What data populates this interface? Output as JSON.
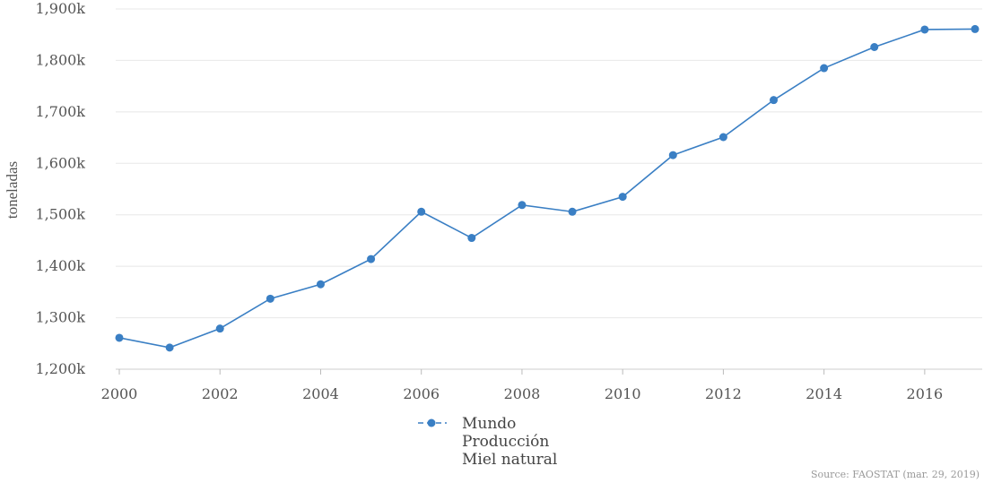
{
  "chart_data": {
    "type": "line",
    "title": "",
    "xlabel": "",
    "ylabel": "toneladas",
    "x": [
      2000,
      2001,
      2002,
      2003,
      2004,
      2005,
      2006,
      2007,
      2008,
      2009,
      2010,
      2011,
      2012,
      2013,
      2014,
      2015,
      2016,
      2017
    ],
    "series": [
      {
        "legend_lines": [
          "Mundo",
          "Producción",
          "Miel natural"
        ],
        "color": "#3a7fc4",
        "values": [
          1261000,
          1242000,
          1279000,
          1337000,
          1365000,
          1414000,
          1506000,
          1455000,
          1519000,
          1506000,
          1535000,
          1616000,
          1651000,
          1723000,
          1785000,
          1826000,
          1860000,
          1861000
        ]
      }
    ],
    "xlim": [
      2000,
      2017
    ],
    "ylim": [
      1200000,
      1900000
    ],
    "x_ticks": [
      {
        "value": 2000,
        "label": "2000"
      },
      {
        "value": 2002,
        "label": "2002"
      },
      {
        "value": 2004,
        "label": "2004"
      },
      {
        "value": 2006,
        "label": "2006"
      },
      {
        "value": 2008,
        "label": "2008"
      },
      {
        "value": 2010,
        "label": "2010"
      },
      {
        "value": 2012,
        "label": "2012"
      },
      {
        "value": 2014,
        "label": "2014"
      },
      {
        "value": 2016,
        "label": "2016"
      }
    ],
    "y_ticks": [
      {
        "value": 1200000,
        "label": "1,200k"
      },
      {
        "value": 1300000,
        "label": "1,300k"
      },
      {
        "value": 1400000,
        "label": "1,400k"
      },
      {
        "value": 1500000,
        "label": "1,500k"
      },
      {
        "value": 1600000,
        "label": "1,600k"
      },
      {
        "value": 1700000,
        "label": "1,700k"
      },
      {
        "value": 1800000,
        "label": "1,800k"
      },
      {
        "value": 1900000,
        "label": "1,900k"
      }
    ],
    "grid": true,
    "legend_position": "bottom-center",
    "source": "Source: FAOSTAT (mar. 29, 2019)"
  }
}
